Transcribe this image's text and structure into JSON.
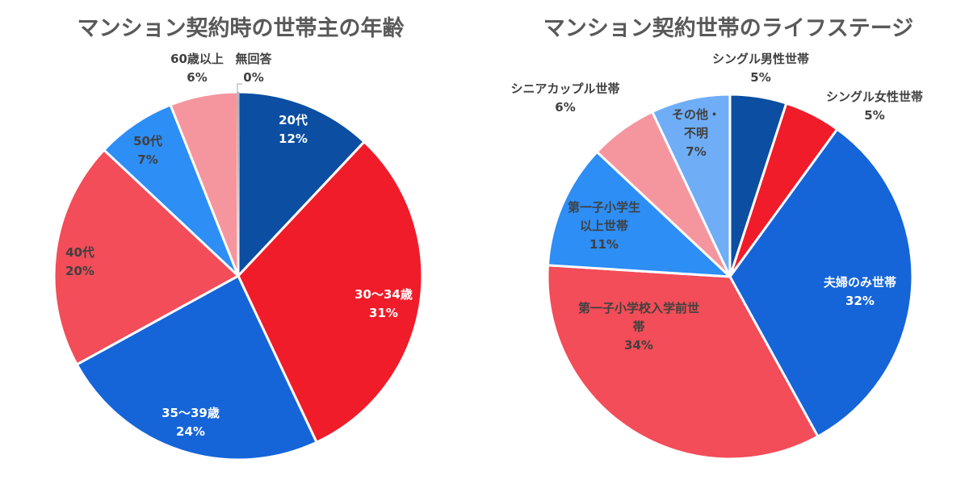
{
  "chart_data": [
    {
      "type": "pie",
      "title": "マンション契約時の世帯主の年齢",
      "slices": [
        {
          "label": "20代",
          "value": 12,
          "value_text": "12%",
          "color": "#0B4EA2"
        },
        {
          "label": "30〜34歳",
          "value": 31,
          "value_text": "31%",
          "color": "#F01C2A"
        },
        {
          "label": "35〜39歳",
          "value": 24,
          "value_text": "24%",
          "color": "#1565D8"
        },
        {
          "label": "40代",
          "value": 20,
          "value_text": "20%",
          "color": "#F24D58"
        },
        {
          "label": "50代",
          "value": 7,
          "value_text": "7%",
          "color": "#2D8EF5"
        },
        {
          "label": "60歳以上",
          "value": 6,
          "value_text": "6%",
          "color": "#F5969E"
        },
        {
          "label": "無回答",
          "value": 0,
          "value_text": "0%",
          "color": "#B0B7C3"
        }
      ]
    },
    {
      "type": "pie",
      "title": "マンション契約世帯のライフステージ",
      "slices": [
        {
          "label": "シングル男性世帯",
          "value": 5,
          "value_text": "5%",
          "color": "#0B4EA2"
        },
        {
          "label": "シングル女性世帯",
          "value": 5,
          "value_text": "5%",
          "color": "#F01C2A"
        },
        {
          "label": "夫婦のみ世帯",
          "value": 32,
          "value_text": "32%",
          "color": "#1565D8"
        },
        {
          "label": "第一子小学校入学前世帯",
          "value": 34,
          "value_text": "34%",
          "color": "#F24D58"
        },
        {
          "label": "第一子小学生以上世帯",
          "value": 11,
          "value_text": "11%",
          "color": "#2D8EF5"
        },
        {
          "label": "シニアカップル世帯",
          "value": 6,
          "value_text": "6%",
          "color": "#F5969E"
        },
        {
          "label": "その他・不明",
          "value": 7,
          "value_text": "7%",
          "color": "#6FAEF7"
        }
      ]
    }
  ]
}
